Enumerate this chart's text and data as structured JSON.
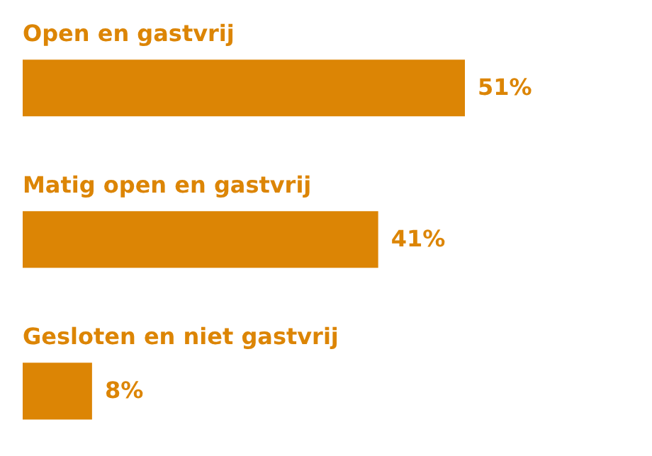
{
  "chart_data": {
    "type": "bar",
    "orientation": "horizontal",
    "categories": [
      "Open en gastvrij",
      "Matig open en gastvrij",
      "Gesloten en niet gastvrij"
    ],
    "values": [
      51,
      41,
      8
    ],
    "value_labels": [
      "51%",
      "41%",
      "8%"
    ],
    "color": "#dc8505"
  }
}
